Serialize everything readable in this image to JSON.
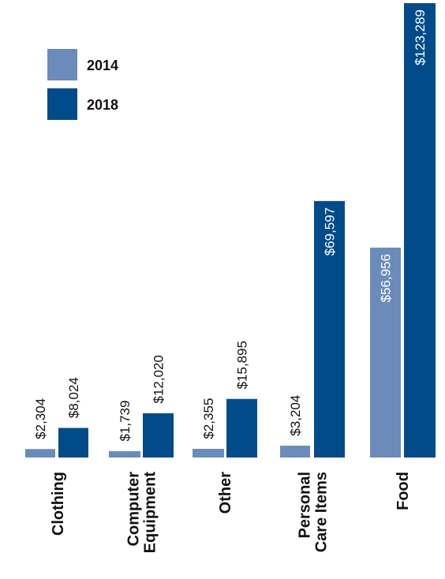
{
  "chart_data": {
    "type": "bar",
    "categories": [
      [
        "Clothing"
      ],
      [
        "Computer",
        "Equipment"
      ],
      [
        "Other"
      ],
      [
        "Personal",
        "Care Items"
      ],
      [
        "Food"
      ]
    ],
    "series": [
      {
        "name": "2014",
        "values": [
          2304,
          1739,
          2355,
          3204,
          56956
        ],
        "labels": [
          "$2,304",
          "$1,739",
          "$2,355",
          "$3,204",
          "$56,956"
        ],
        "color": "#6b8cba"
      },
      {
        "name": "2018",
        "values": [
          8024,
          12020,
          15895,
          69597,
          123289
        ],
        "labels": [
          "$8,024",
          "$12,020",
          "$15,895",
          "$69,597",
          "$123,289"
        ],
        "color": "#024b8b"
      }
    ],
    "title": "",
    "xlabel": "",
    "ylabel": "",
    "ylim": [
      0,
      123289
    ],
    "grid": false,
    "legend": "top-left",
    "orientation": "vertical bars, labels rotated -90 degrees"
  }
}
